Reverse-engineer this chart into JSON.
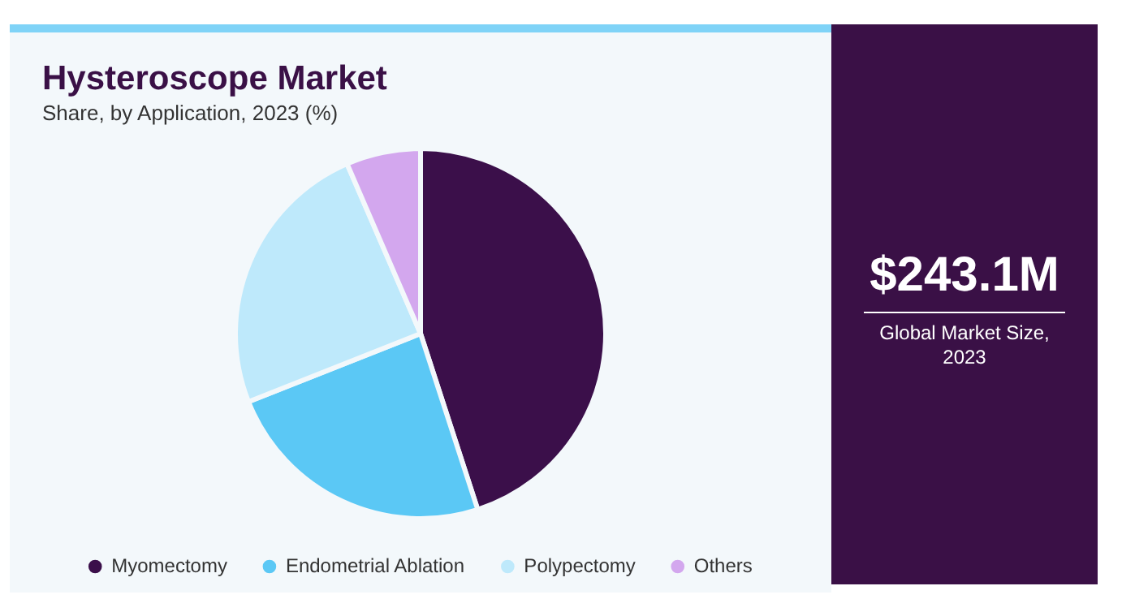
{
  "chart_data": {
    "type": "pie",
    "title": "Hysteroscope Market",
    "subtitle": "Share, by Application, 2023 (%)",
    "categories": [
      "Myomectomy",
      "Endometrial Ablation",
      "Polypectomy",
      "Others"
    ],
    "values": [
      45,
      24,
      24.5,
      6.5
    ],
    "colors": [
      "#3b0f4a",
      "#5bc8f5",
      "#bee9fb",
      "#d3a7ee"
    ],
    "legend": "bottom",
    "annotations": [
      "$243.1M",
      "Global Market Size, 2023"
    ]
  }
}
